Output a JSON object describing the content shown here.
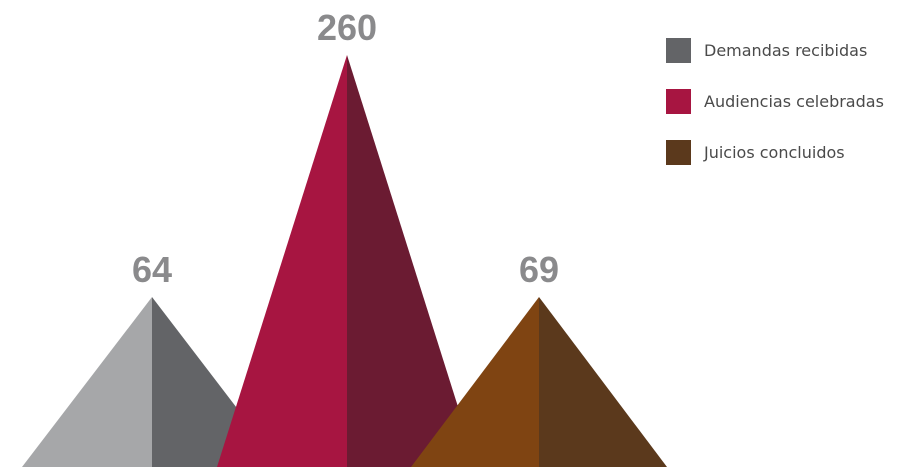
{
  "chart_data": {
    "type": "bar",
    "categories": [
      "Demandas recibidas",
      "Audiencias celebradas",
      "Juicios concluidos"
    ],
    "values": [
      64,
      260,
      69
    ],
    "value_labels": [
      "64",
      "260",
      "69"
    ],
    "title": "",
    "xlabel": "",
    "ylabel": "",
    "grid": false,
    "legend_position": "top-right",
    "mark_shape": "pyramid",
    "colors": [
      {
        "light": "#a6a7a9",
        "dark": "#636467"
      },
      {
        "light": "#a71541",
        "dark": "#6b1b32"
      },
      {
        "light": "#7f4412",
        "dark": "#5b391c"
      }
    ],
    "value_label_color": "#8a8a8c"
  },
  "legend": {
    "items": [
      {
        "label": "Demandas recibidas",
        "color": "#636467"
      },
      {
        "label": "Audiencias celebradas",
        "color": "#a71541"
      },
      {
        "label": "Juicios concluidos",
        "color": "#5b391c"
      }
    ]
  }
}
